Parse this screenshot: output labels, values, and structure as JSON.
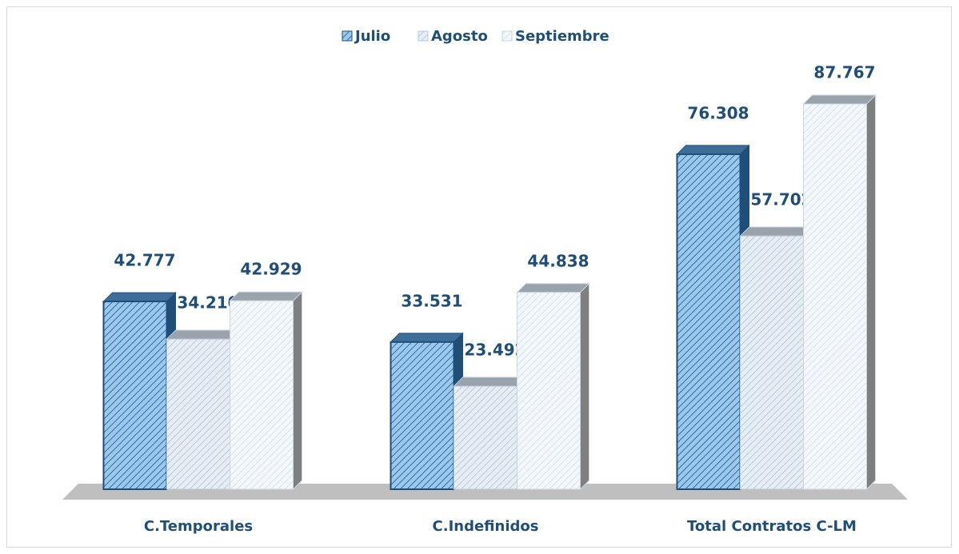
{
  "chart_data": {
    "type": "bar3d",
    "categories": [
      "C.Temporales",
      "C.Indefinidos",
      "Total Contratos C-LM"
    ],
    "series": [
      {
        "name": "Julio",
        "color": "#9cc8ec",
        "values": [
          42777,
          33531,
          76308
        ],
        "value_labels": [
          "42.777",
          "33.531",
          "76.308"
        ]
      },
      {
        "name": "Agosto",
        "color": "#dbe7f1",
        "values": [
          34210,
          23492,
          57702
        ],
        "value_labels": [
          "34.210",
          "23.492",
          "57.702"
        ]
      },
      {
        "name": "Septiembre",
        "color": "#eef4fa",
        "values": [
          42929,
          44838,
          87767
        ],
        "value_labels": [
          "42.929",
          "44.838",
          "87.767"
        ]
      }
    ],
    "legend": "top"
  }
}
